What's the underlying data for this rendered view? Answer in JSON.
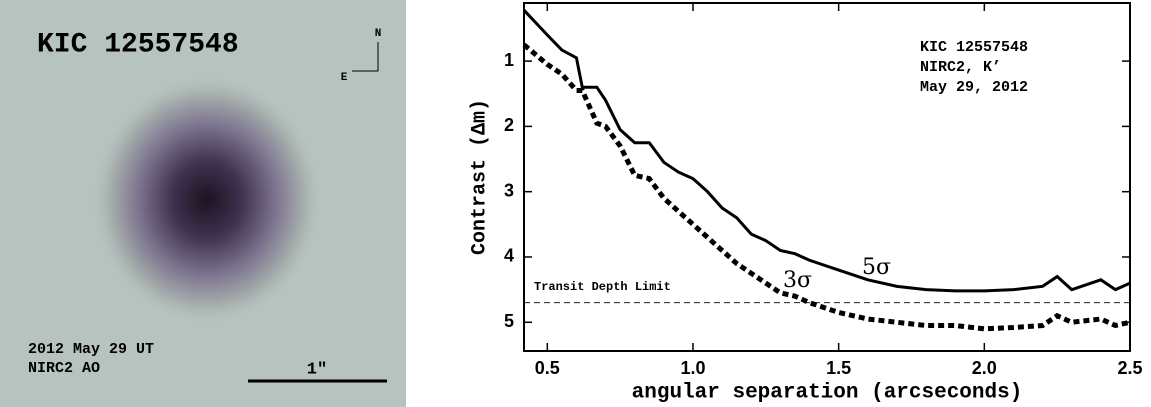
{
  "image": {
    "title": "KIC 12557548",
    "north": "N",
    "east": "E",
    "date": "2012 May 29 UT",
    "instrument": "NIRC2 AO",
    "scale": "1\""
  },
  "chart_data": {
    "type": "line",
    "xlabel": "angular separation (arcseconds)",
    "ylabel": "Contrast (Δm)",
    "info": [
      "KIC 12557548",
      "NIRC2, K’",
      "May 29, 2012"
    ],
    "threshold": {
      "label": "Transit Depth Limit",
      "value": 4.7
    },
    "xlim": [
      0.42,
      2.5
    ],
    "xticks": [
      0.5,
      {
        "value": 1,
        "label": "1.0"
      },
      1.5,
      {
        "value": 2,
        "label": "2.0"
      },
      2.5
    ],
    "ylim": [
      5.44,
      0.11
    ],
    "yticks": [
      1,
      2,
      3,
      4,
      5
    ],
    "x": [
      0.42,
      0.5,
      0.55,
      0.6,
      0.62,
      0.67,
      0.7,
      0.75,
      0.8,
      0.85,
      0.9,
      0.95,
      1.0,
      1.05,
      1.1,
      1.15,
      1.2,
      1.25,
      1.3,
      1.35,
      1.4,
      1.5,
      1.6,
      1.7,
      1.8,
      1.9,
      2.0,
      2.1,
      2.2,
      2.25,
      2.3,
      2.4,
      2.45,
      2.5
    ],
    "series": [
      {
        "name": "5σ",
        "color": "#000000",
        "dash": "none",
        "values": [
          0.22,
          0.6,
          0.83,
          0.95,
          1.4,
          1.4,
          1.6,
          2.05,
          2.25,
          2.25,
          2.55,
          2.7,
          2.8,
          3.0,
          3.25,
          3.4,
          3.65,
          3.75,
          3.9,
          3.95,
          4.05,
          4.2,
          4.35,
          4.45,
          4.5,
          4.52,
          4.52,
          4.5,
          4.45,
          4.3,
          4.5,
          4.35,
          4.5,
          4.4
        ]
      },
      {
        "name": "3σ",
        "color": "#000000",
        "dash": "6 4",
        "values": [
          0.75,
          1.05,
          1.2,
          1.45,
          1.45,
          1.95,
          2.0,
          2.3,
          2.75,
          2.8,
          3.1,
          3.3,
          3.5,
          3.7,
          3.9,
          4.1,
          4.25,
          4.4,
          4.55,
          4.6,
          4.7,
          4.85,
          4.95,
          5.0,
          5.05,
          5.05,
          5.1,
          5.08,
          5.05,
          4.9,
          5.0,
          4.95,
          5.05,
          5.0
        ]
      }
    ]
  }
}
